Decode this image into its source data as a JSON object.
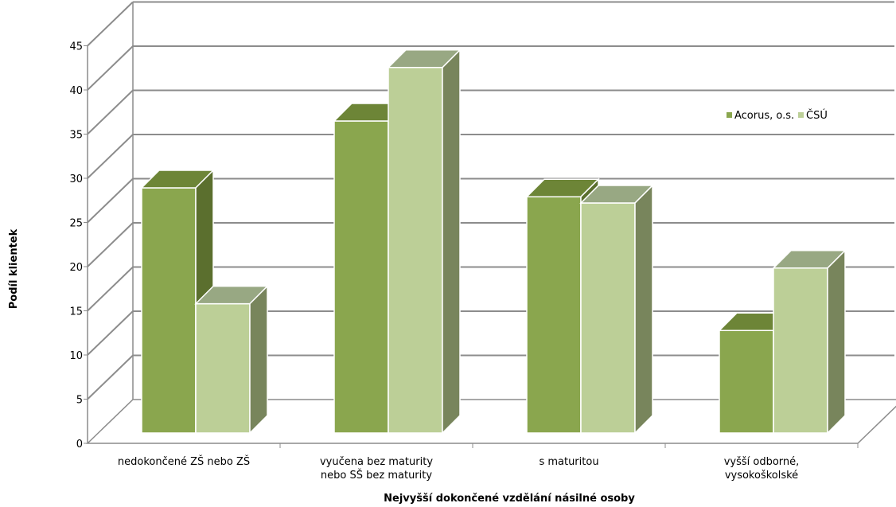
{
  "chart_data": {
    "type": "bar",
    "subtype": "3d-clustered-column",
    "title": "",
    "xlabel": "Nejvyšší dokončené vzdělání násilné osoby",
    "ylabel": "Podíl klientek",
    "ylim": [
      0,
      45
    ],
    "yticks": [
      "0",
      "5",
      "10",
      "15",
      "20",
      "25",
      "30",
      "35",
      "40",
      "45"
    ],
    "grid": true,
    "legend_position": "top-right",
    "categories": [
      [
        "nedokončené ZŠ nebo ZŠ"
      ],
      [
        "vyučena bez maturity",
        "nebo SŠ bez maturity"
      ],
      [
        "s maturitou"
      ],
      [
        "vyšší odborné,",
        "vysokoškolské"
      ]
    ],
    "series": [
      {
        "name": "Acorus, o.s.",
        "values": [
          27.5,
          35,
          26.5,
          11.5
        ],
        "color": "#8aa64e"
      },
      {
        "name": "ČSÚ",
        "values": [
          14.5,
          41,
          25.8,
          18.5
        ],
        "color": "#bccf97"
      }
    ]
  }
}
